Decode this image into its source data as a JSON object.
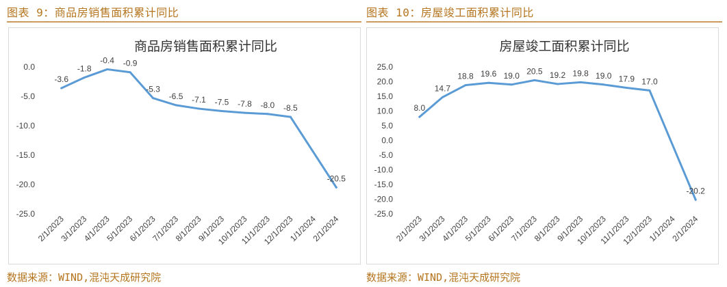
{
  "figures": [
    {
      "caption": "图表 9：商品房销售面积累计同比",
      "source": "数据来源：WIND,混沌天成研究院",
      "color": "#5b9bd5"
    },
    {
      "caption": "图表 10：房屋竣工面积累计同比",
      "source": "数据来源：WIND,混沌天成研究院",
      "color": "#5b9bd5"
    }
  ],
  "chart_data": [
    {
      "type": "line",
      "title": "商品房销售面积累计同比",
      "categories": [
        "2/1/2023",
        "3/1/2023",
        "4/1/2023",
        "5/1/2023",
        "6/1/2023",
        "7/1/2023",
        "8/1/2023",
        "9/1/2023",
        "10/1/2023",
        "11/1/2023",
        "12/1/2023",
        "1/1/2024",
        "2/1/2024"
      ],
      "values": [
        -3.6,
        -1.8,
        -0.4,
        -0.9,
        -5.3,
        -6.5,
        -7.1,
        -7.5,
        -7.8,
        -8.0,
        -8.5,
        null,
        -20.5
      ],
      "labels": [
        "-3.6",
        "-1.8",
        "-0.4",
        "-0.9",
        "-5.3",
        "-6.5",
        "-7.1",
        "-7.5",
        "-7.8",
        "-8.0",
        "-8.5",
        "",
        "-20.5"
      ],
      "ylim": [
        -25,
        0
      ],
      "yticks": [
        "0.0",
        "-5.0",
        "-10.0",
        "-15.0",
        "-20.0",
        "-25.0"
      ],
      "grid": false,
      "legend": "none"
    },
    {
      "type": "line",
      "title": "房屋竣工面积累计同比",
      "categories": [
        "2/1/2023",
        "3/1/2023",
        "4/1/2023",
        "5/1/2023",
        "6/1/2023",
        "7/1/2023",
        "8/1/2023",
        "9/1/2023",
        "10/1/2023",
        "11/1/2023",
        "12/1/2023",
        "1/1/2024",
        "2/1/2024"
      ],
      "values": [
        8.0,
        14.7,
        18.8,
        19.6,
        19.0,
        20.5,
        19.2,
        19.8,
        19.0,
        17.9,
        17.0,
        null,
        -20.2
      ],
      "labels": [
        "8.0",
        "14.7",
        "18.8",
        "19.6",
        "19.0",
        "20.5",
        "19.2",
        "19.8",
        "19.0",
        "17.9",
        "17.0",
        "",
        "-20.2"
      ],
      "ylim": [
        -25,
        25
      ],
      "yticks": [
        "25.0",
        "20.0",
        "15.0",
        "10.0",
        "5.0",
        "0.0",
        "-5.0",
        "-10.0",
        "-15.0",
        "-20.0",
        "-25.0"
      ],
      "grid": false,
      "legend": "none"
    }
  ]
}
